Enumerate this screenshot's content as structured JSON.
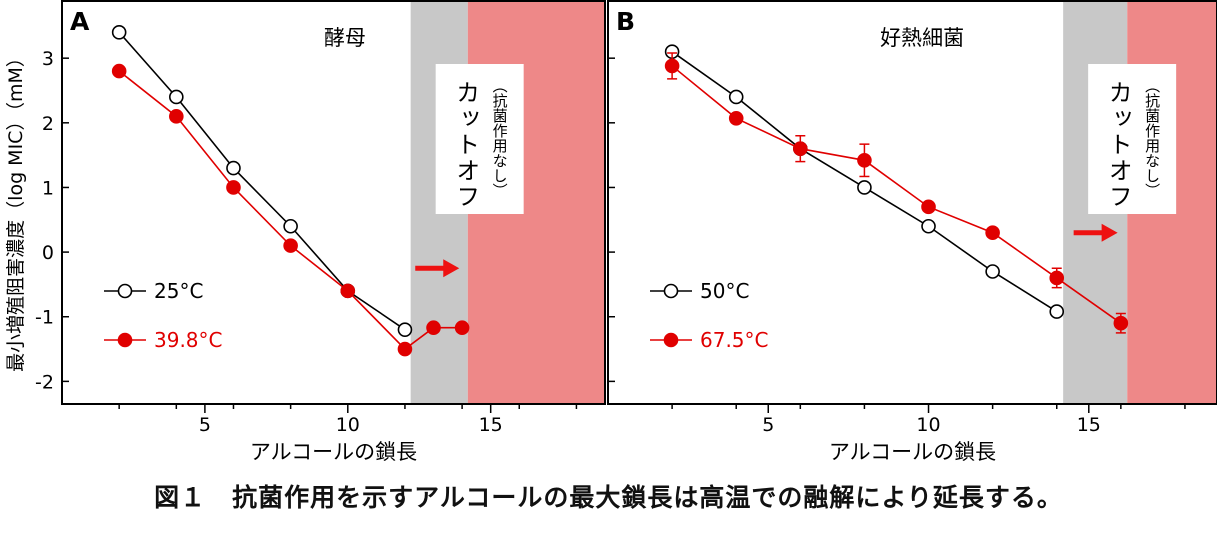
{
  "caption": "図１　抗菌作用を示すアルコールの最大鎖長は高温での融解により延長する。",
  "ylabel": "最小増殖阻害濃度（log MIC）（mM）",
  "colors": {
    "black_series": "#000000",
    "red_series": "#e00000",
    "cutoff_gray": "#c8c8c8",
    "cutoff_red": "#ee8888",
    "arrow": "#ee1111"
  },
  "chart_data": [
    {
      "type": "line",
      "panel_letter": "A",
      "title": "酵母",
      "xlabel": "アルコールの鎖長",
      "xlim": [
        0,
        19
      ],
      "ylim": [
        -2.35,
        3.9
      ],
      "xticks_labeled": [
        5,
        10,
        15
      ],
      "xticks_minor": [
        2,
        4,
        6,
        8,
        12,
        14,
        16,
        18
      ],
      "yticks": [
        3,
        2,
        1,
        0,
        -1,
        -2
      ],
      "cutoff_gray_range": [
        12.2,
        14.2
      ],
      "cutoff_red_range": [
        14.2,
        19
      ],
      "cutoff_label": "カットオフ",
      "cutoff_sub": "（抗菌作用なし）",
      "arrow_at": [
        13.9,
        -0.25
      ],
      "legend_position": "bottom-left",
      "series": [
        {
          "name": "25°C",
          "marker": "open",
          "color": "#000000",
          "x": [
            2,
            4,
            6,
            8,
            10,
            12
          ],
          "y": [
            3.4,
            2.4,
            1.3,
            0.4,
            -0.6,
            -1.2
          ],
          "err": [
            0,
            0,
            0,
            0,
            0,
            0
          ]
        },
        {
          "name": "39.8°C",
          "marker": "filled",
          "color": "#e00000",
          "x": [
            2,
            4,
            6,
            8,
            10,
            12,
            13,
            14
          ],
          "y": [
            2.8,
            2.1,
            1.0,
            0.1,
            -0.6,
            -1.5,
            -1.17,
            -1.17
          ],
          "err": [
            0,
            0,
            0,
            0,
            0,
            0,
            0,
            0
          ]
        }
      ]
    },
    {
      "type": "line",
      "panel_letter": "B",
      "title": "好熱細菌",
      "xlabel": "アルコールの鎖長",
      "xlim": [
        0,
        19
      ],
      "ylim": [
        -2.35,
        3.9
      ],
      "xticks_labeled": [
        5,
        10,
        15
      ],
      "xticks_minor": [
        2,
        4,
        6,
        8,
        12,
        14,
        16,
        18
      ],
      "yticks": [
        3,
        2,
        1,
        0,
        -1,
        -2
      ],
      "cutoff_gray_range": [
        14.2,
        16.2
      ],
      "cutoff_red_range": [
        16.2,
        19
      ],
      "cutoff_label": "カットオフ",
      "cutoff_sub": "（抗菌作用なし）",
      "arrow_at": [
        15.9,
        0.3
      ],
      "legend_position": "bottom-left",
      "series": [
        {
          "name": "50°C",
          "marker": "open",
          "color": "#000000",
          "x": [
            2,
            4,
            6,
            8,
            10,
            12,
            14
          ],
          "y": [
            3.1,
            2.4,
            1.6,
            1.0,
            0.4,
            -0.3,
            -0.92
          ],
          "err": [
            0,
            0,
            0,
            0,
            0,
            0,
            0
          ]
        },
        {
          "name": "67.5°C",
          "marker": "filled",
          "color": "#e00000",
          "x": [
            2,
            4,
            6,
            8,
            10,
            12,
            14,
            16
          ],
          "y": [
            2.88,
            2.07,
            1.6,
            1.42,
            0.7,
            0.3,
            -0.4,
            -1.1
          ],
          "err": [
            0.2,
            0,
            0.2,
            0.25,
            0,
            0,
            0.15,
            0.15
          ]
        }
      ]
    }
  ]
}
